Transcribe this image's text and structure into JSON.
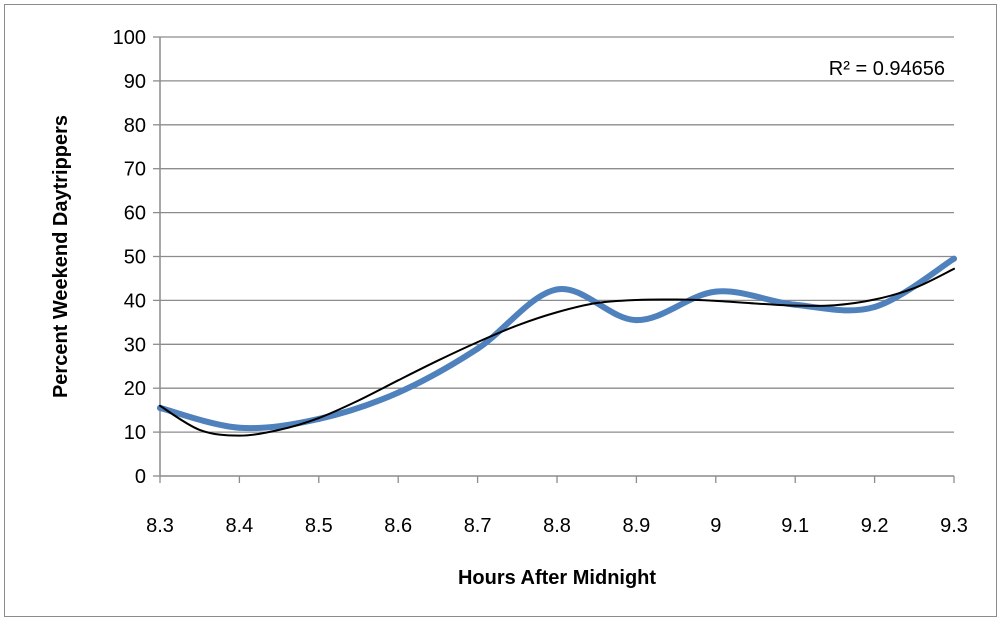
{
  "chart_data": {
    "type": "line",
    "title": "",
    "xlabel": "Hours After Midnight",
    "ylabel": "Percent Weekend Daytrippers",
    "xlim": [
      8.3,
      9.3
    ],
    "ylim": [
      0,
      100
    ],
    "x_ticks": [
      "8.3",
      "8.4",
      "8.5",
      "8.6",
      "8.7",
      "8.8",
      "8.9",
      "9",
      "9.1",
      "9.2",
      "9.3"
    ],
    "y_ticks": [
      "0",
      "10",
      "20",
      "30",
      "40",
      "50",
      "60",
      "70",
      "80",
      "90",
      "100"
    ],
    "grid": "horizontal",
    "legend": "none",
    "annotations": [
      {
        "text": "R² = 0.94656",
        "position": "top-right"
      }
    ],
    "series": [
      {
        "kind": "data",
        "color": "#4f81bd",
        "x": [
          8.3,
          8.4,
          8.5,
          8.6,
          8.7,
          8.8,
          8.9,
          9.0,
          9.1,
          9.2,
          9.3
        ],
        "y": [
          15.5,
          11,
          13,
          19,
          29,
          42.5,
          35.5,
          42,
          39,
          38.5,
          49.5
        ]
      },
      {
        "kind": "trendline",
        "color": "#000000",
        "x": [
          8.3,
          8.35,
          8.4,
          8.45,
          8.5,
          8.55,
          8.6,
          8.65,
          8.7,
          8.75,
          8.8,
          8.85,
          8.9,
          8.95,
          9.0,
          9.05,
          9.1,
          9.15,
          9.2,
          9.25,
          9.3
        ],
        "y": [
          16,
          10.5,
          9.2,
          10.5,
          13.2,
          17.2,
          21.8,
          26.3,
          30.5,
          34.3,
          37.3,
          39.4,
          40.1,
          40.2,
          39.9,
          39.3,
          38.8,
          38.9,
          40.2,
          42.8,
          47.2
        ]
      }
    ]
  }
}
